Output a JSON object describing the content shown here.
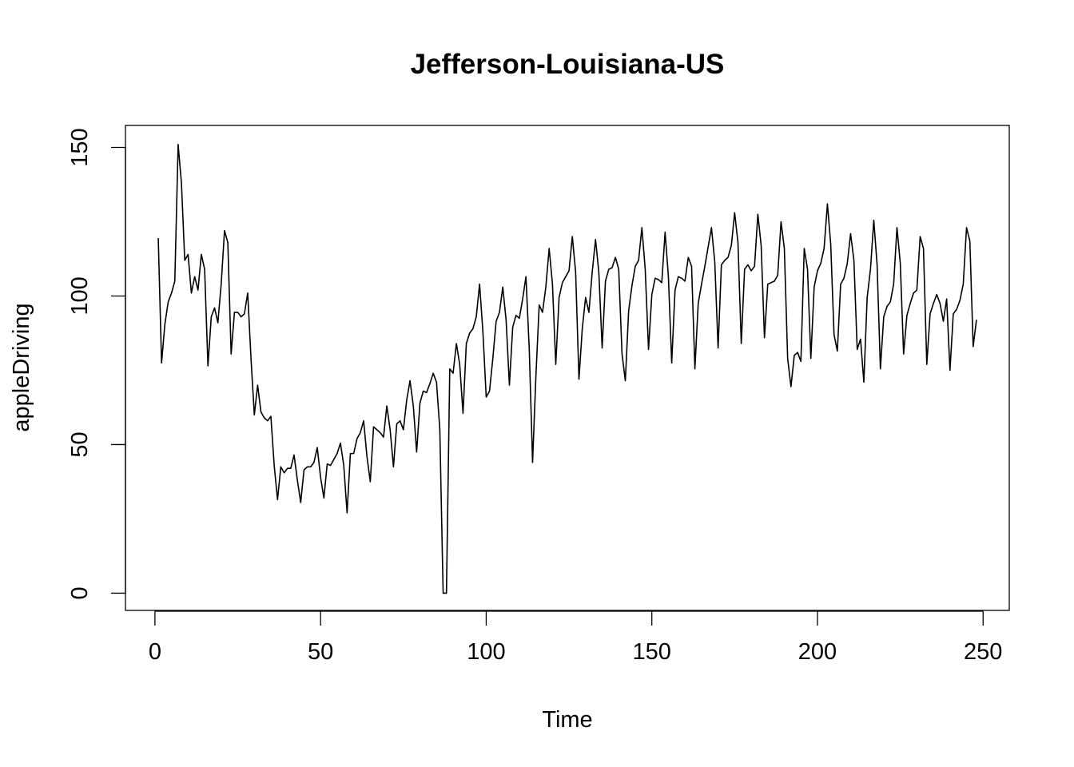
{
  "chart_data": {
    "type": "line",
    "title": "Jefferson-Louisiana-US",
    "xlabel": "Time",
    "ylabel": "appleDriving",
    "xlim": [
      -8.9,
      257.9
    ],
    "ylim": [
      -5.8,
      157.4
    ],
    "x_ticks": [
      0,
      50,
      100,
      150,
      200,
      250
    ],
    "y_ticks": [
      0,
      50,
      100,
      150
    ],
    "grid": false,
    "legend": "none",
    "line_color": "#000000",
    "x_start": 1,
    "x_step": 1,
    "values": [
      119.5,
      77.5,
      90.5,
      98.0,
      101.0,
      105.0,
      151.0,
      138.0,
      112.0,
      114.0,
      101.0,
      106.5,
      102.0,
      114.0,
      109.0,
      76.5,
      93.0,
      96.0,
      91.0,
      104.0,
      122.0,
      118.0,
      80.5,
      94.5,
      94.5,
      93.0,
      94.0,
      101.0,
      79.0,
      60.0,
      70.0,
      61.0,
      59.0,
      58.0,
      59.5,
      43.0,
      31.5,
      42.5,
      40.5,
      42.0,
      42.0,
      46.5,
      38.0,
      30.5,
      41.5,
      42.5,
      42.5,
      44.0,
      49.0,
      39.0,
      32.0,
      43.5,
      43.0,
      45.0,
      47.0,
      50.5,
      43.0,
      27.0,
      47.0,
      47.0,
      52.0,
      54.0,
      58.0,
      46.0,
      37.5,
      56.0,
      55.0,
      54.0,
      52.5,
      63.0,
      55.0,
      42.5,
      57.0,
      58.0,
      55.0,
      65.0,
      71.5,
      63.0,
      47.5,
      64.0,
      68.0,
      67.5,
      70.5,
      74.0,
      71.0,
      55.0,
      0.0,
      0.0,
      75.5,
      74.0,
      84.0,
      77.0,
      60.5,
      84.0,
      87.5,
      89.0,
      93.0,
      104.0,
      88.0,
      66.0,
      68.0,
      79.0,
      91.5,
      94.5,
      103.0,
      92.0,
      70.0,
      89.5,
      93.5,
      92.5,
      99.0,
      106.5,
      82.0,
      44.0,
      73.0,
      97.0,
      94.5,
      103.0,
      116.0,
      104.0,
      77.0,
      99.5,
      104.5,
      106.5,
      108.5,
      120.0,
      108.0,
      72.0,
      89.0,
      99.5,
      94.5,
      108.0,
      119.0,
      108.0,
      82.5,
      105.0,
      109.0,
      109.5,
      113.0,
      109.0,
      80.5,
      71.5,
      95.0,
      103.5,
      110.0,
      112.0,
      123.0,
      109.0,
      82.0,
      100.5,
      106.0,
      105.5,
      104.5,
      121.5,
      106.5,
      77.5,
      102.0,
      106.5,
      106.0,
      105.0,
      113.0,
      110.0,
      75.5,
      97.5,
      104.0,
      110.0,
      116.5,
      123.0,
      111.5,
      82.5,
      110.5,
      112.0,
      113.0,
      117.0,
      128.0,
      118.0,
      84.0,
      109.0,
      110.5,
      108.5,
      110.0,
      127.5,
      117.0,
      86.0,
      104.0,
      104.5,
      105.0,
      107.0,
      125.0,
      116.0,
      79.0,
      69.5,
      80.0,
      81.0,
      78.0,
      116.0,
      109.0,
      79.0,
      103.0,
      108.5,
      111.0,
      116.0,
      131.0,
      117.5,
      87.0,
      81.5,
      104.0,
      106.0,
      111.0,
      121.0,
      112.0,
      82.0,
      85.5,
      71.0,
      99.5,
      109.0,
      125.5,
      110.5,
      75.5,
      93.0,
      96.5,
      98.0,
      104.0,
      123.0,
      111.0,
      80.5,
      93.5,
      97.5,
      101.0,
      102.0,
      120.0,
      116.0,
      77.0,
      94.0,
      97.5,
      100.5,
      97.5,
      91.5,
      99.0,
      75.0,
      94.0,
      95.5,
      98.5,
      104.0,
      123.0,
      118.5,
      83.0,
      92.0
    ]
  }
}
